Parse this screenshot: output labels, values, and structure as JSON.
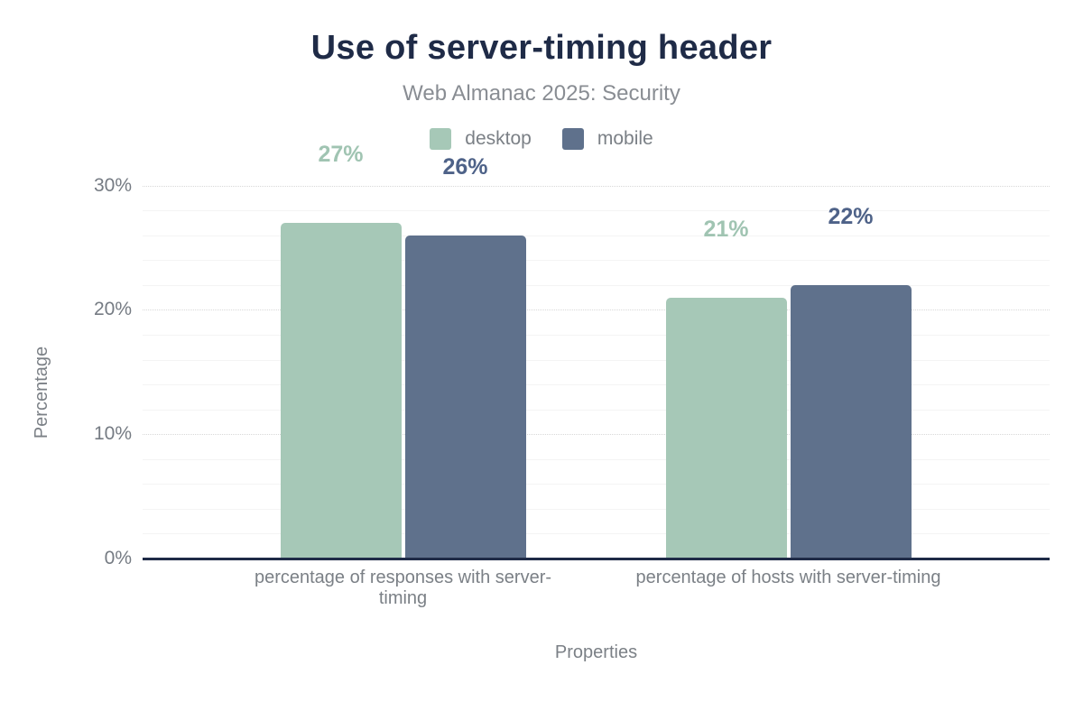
{
  "chart": {
    "title": "Use of server-timing header",
    "subtitle": "Web Almanac 2025: Security",
    "x_axis_title": "Properties",
    "y_axis_title": "Percentage",
    "y_ticks": [
      {
        "value": 0,
        "label": "0%"
      },
      {
        "value": 10,
        "label": "10%"
      },
      {
        "value": 20,
        "label": "20%"
      },
      {
        "value": 30,
        "label": "30%"
      }
    ],
    "colors": {
      "title": "#1f2b47",
      "axis_line": "#1f2b47",
      "text_gray": "#7b8086",
      "subtitle_gray": "#898d93",
      "grid_minor": "#f4f4f4",
      "grid_major_dotted": "#d8d8d8"
    }
  },
  "chart_data": {
    "type": "bar",
    "title": "Use of server-timing header",
    "subtitle": "Web Almanac 2025: Security",
    "xlabel": "Properties",
    "ylabel": "Percentage",
    "ylim": [
      0,
      30
    ],
    "grid": "minor solid gridline every 2%, major dotted gridline every 10%",
    "legend_position": "top",
    "categories": [
      "percentage of responses with server-timing",
      "percentage of hosts with server-timing"
    ],
    "series": [
      {
        "name": "desktop",
        "color": "#a6c8b7",
        "label_color": "#a0c4b2",
        "values": [
          27,
          21
        ],
        "data_labels": [
          "27%",
          "21%"
        ]
      },
      {
        "name": "mobile",
        "color": "#5f718c",
        "label_color": "#4e6288",
        "values": [
          26,
          22
        ],
        "data_labels": [
          "26%",
          "22%"
        ]
      }
    ]
  }
}
